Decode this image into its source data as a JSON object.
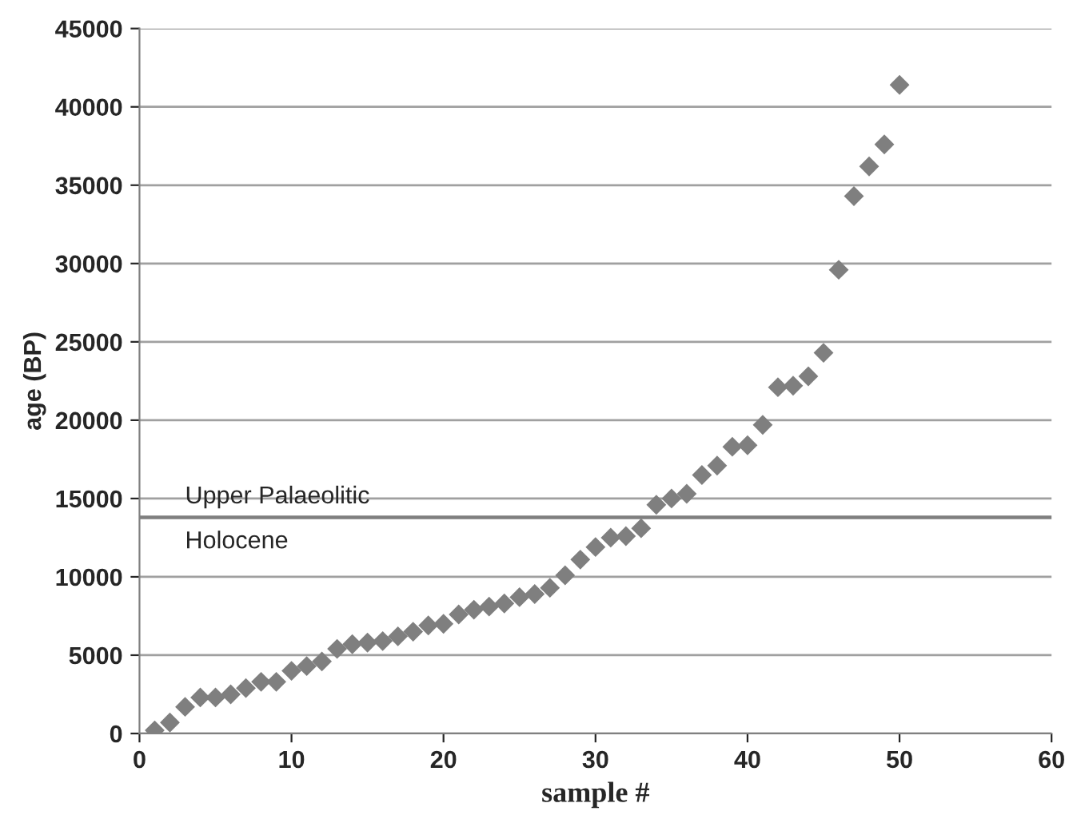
{
  "chart_data": {
    "type": "scatter",
    "xlabel": "sample #",
    "ylabel": "age (BP)",
    "x": [
      1,
      2,
      3,
      4,
      5,
      6,
      7,
      8,
      9,
      10,
      11,
      12,
      13,
      14,
      15,
      16,
      17,
      18,
      19,
      20,
      21,
      22,
      23,
      24,
      25,
      26,
      27,
      28,
      29,
      30,
      31,
      32,
      33,
      34,
      35,
      36,
      37,
      38,
      39,
      40,
      41,
      42,
      43,
      44,
      45,
      46,
      47,
      48,
      49,
      50
    ],
    "series": [
      {
        "color": "#7f7f7f",
        "values": [
          200,
          700,
          1700,
          2300,
          2300,
          2500,
          2900,
          3300,
          3300,
          4000,
          4300,
          4600,
          5400,
          5700,
          5800,
          5900,
          6200,
          6500,
          6900,
          7000,
          7600,
          7900,
          8100,
          8300,
          8700,
          8900,
          9300,
          10100,
          11100,
          11900,
          12500,
          12600,
          13100,
          14600,
          15000,
          15300,
          16500,
          17100,
          18300,
          18400,
          19700,
          22100,
          22200,
          22800,
          24300,
          29600,
          34300,
          36200,
          37600,
          41400
        ]
      }
    ],
    "marker": "diamond",
    "xlim": [
      0,
      60
    ],
    "xticks": [
      0,
      10,
      20,
      30,
      40,
      50,
      60
    ],
    "ylim": [
      0,
      45000
    ],
    "yticks": [
      0,
      5000,
      10000,
      15000,
      20000,
      25000,
      30000,
      35000,
      40000,
      45000
    ],
    "grid": "y",
    "ref_lines": [
      {
        "axis": "y",
        "value": 13800,
        "color": "#7f7f7f"
      }
    ],
    "annotations": [
      "Upper Palaeolitic",
      "Holocene"
    ]
  }
}
